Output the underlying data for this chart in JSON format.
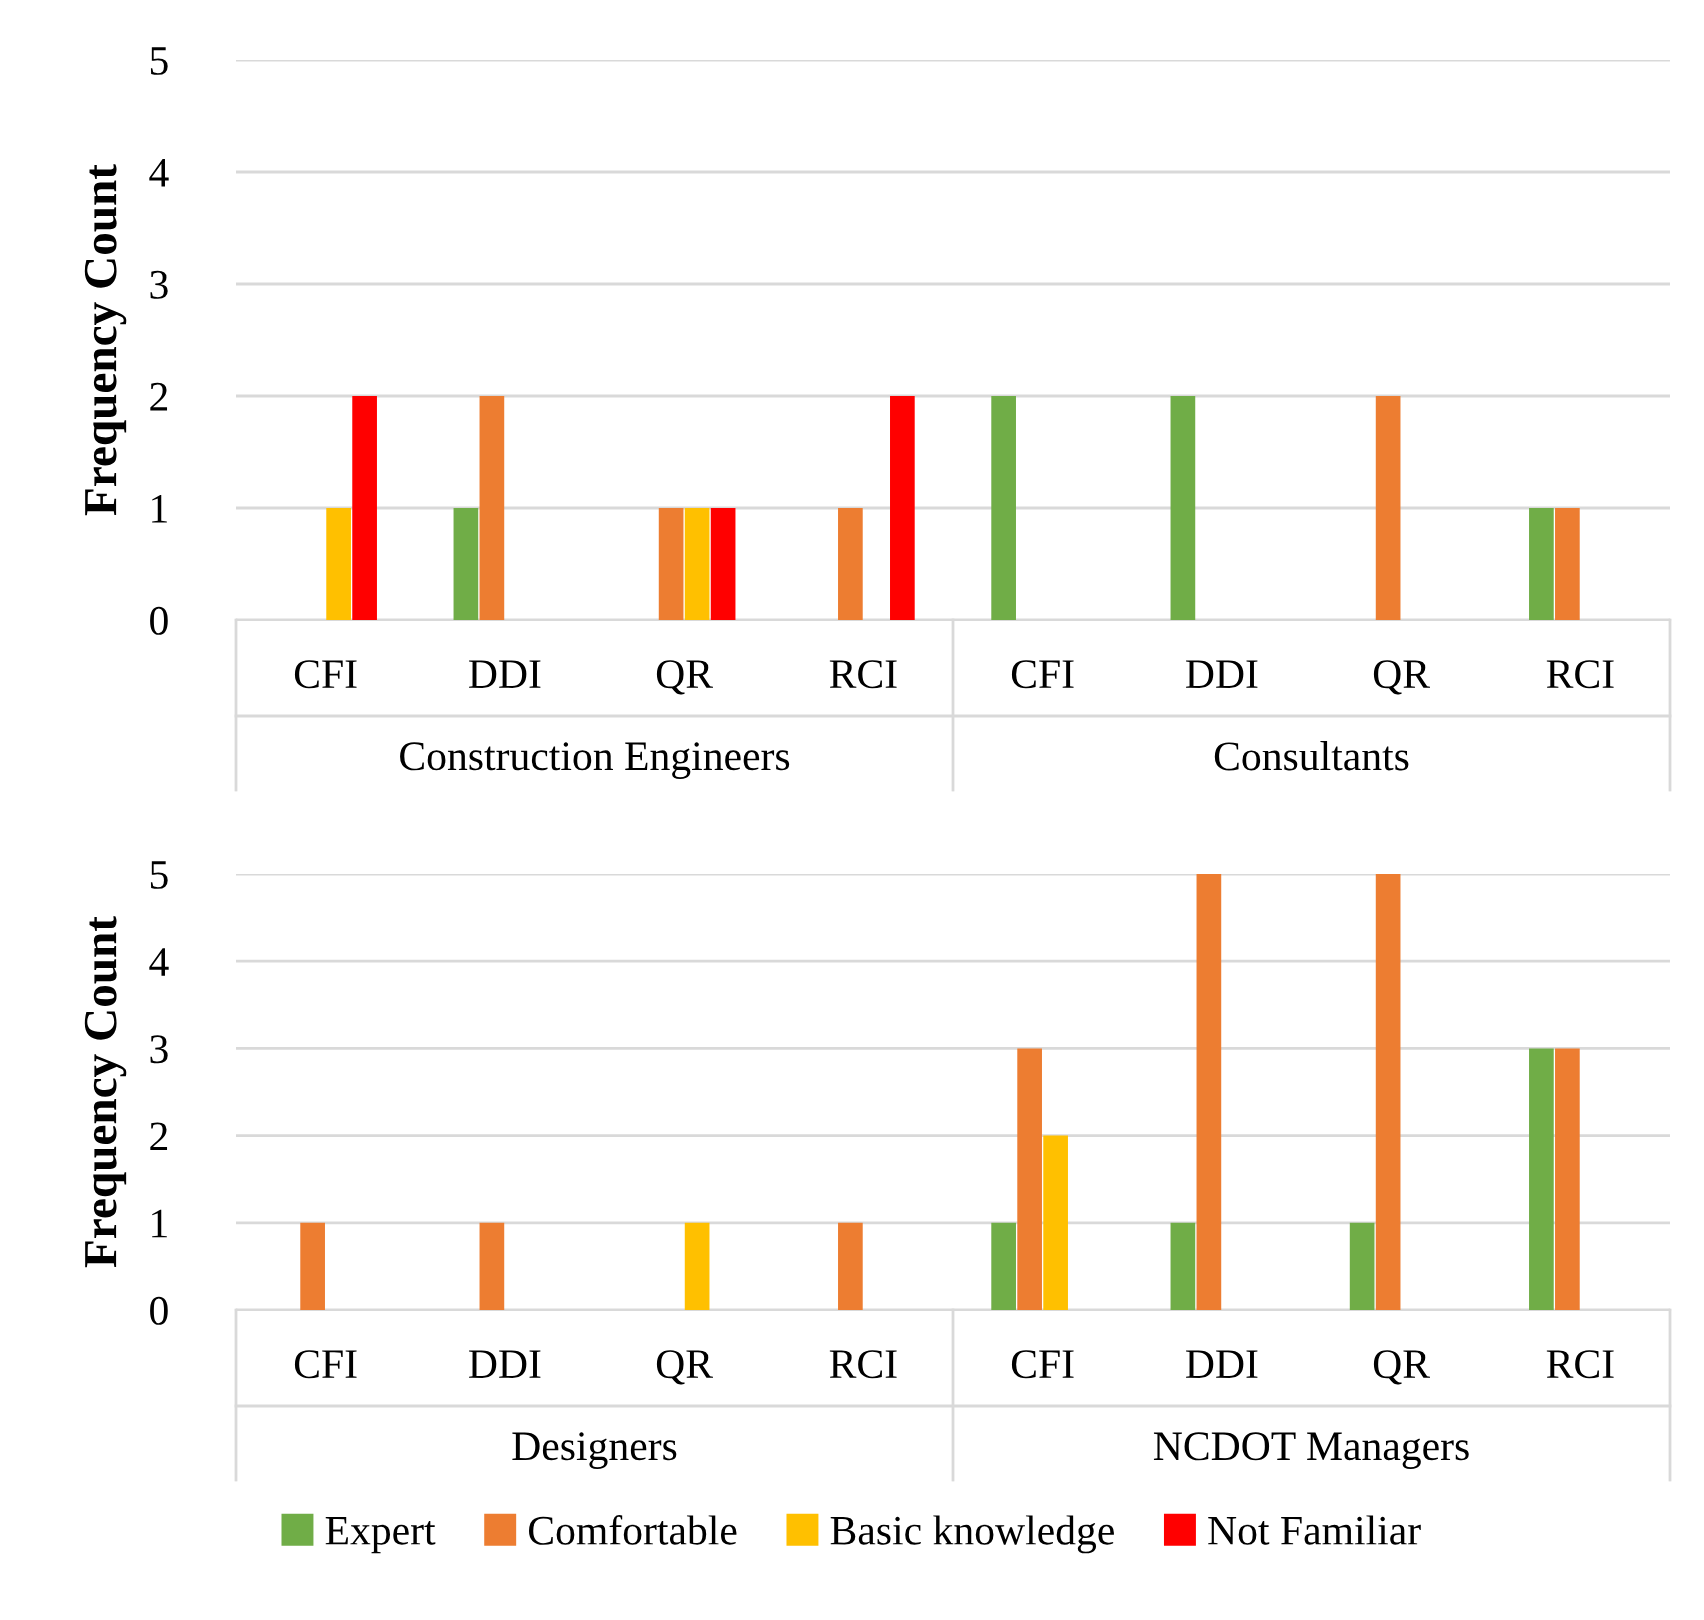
{
  "chart_data": [
    {
      "type": "bar",
      "ylabel": "Frequency Count",
      "categories": [
        "CFI",
        "DDI",
        "QR",
        "RCI",
        "CFI",
        "DDI",
        "QR",
        "RCI"
      ],
      "series": [
        {
          "color": "#70ad47",
          "values": [
            0,
            1,
            0,
            0,
            2,
            2,
            0,
            1
          ]
        },
        {
          "color": "#ed7d31",
          "values": [
            0,
            2,
            1,
            1,
            0,
            0,
            2,
            1
          ]
        },
        {
          "color": "#ffc000",
          "values": [
            1,
            0,
            1,
            0,
            0,
            0,
            0,
            0
          ]
        },
        {
          "color": "#ff0000",
          "values": [
            2,
            0,
            1,
            2,
            0,
            0,
            0,
            0
          ]
        }
      ],
      "ylim": [
        0,
        5
      ],
      "yticks": [
        0,
        1,
        2,
        3,
        4,
        5
      ],
      "grid": "y",
      "annotations": [
        "Construction Engineers",
        "Consultants"
      ]
    },
    {
      "type": "bar",
      "ylabel": "Frequency Count",
      "categories": [
        "CFI",
        "DDI",
        "QR",
        "RCI",
        "CFI",
        "DDI",
        "QR",
        "RCI"
      ],
      "series": [
        {
          "name": "Expert",
          "color": "#70ad47",
          "values": [
            0,
            0,
            0,
            0,
            1,
            1,
            1,
            3
          ]
        },
        {
          "name": "Comfortable",
          "color": "#ed7d31",
          "values": [
            1,
            1,
            0,
            1,
            3,
            5,
            5,
            3
          ]
        },
        {
          "name": "Basic knowledge",
          "color": "#ffc000",
          "values": [
            0,
            0,
            1,
            0,
            2,
            0,
            0,
            0
          ]
        },
        {
          "name": "Not Familiar",
          "color": "#ff0000",
          "values": [
            0,
            0,
            0,
            0,
            0,
            0,
            0,
            0
          ]
        }
      ],
      "ylim": [
        0,
        5
      ],
      "yticks": [
        0,
        1,
        2,
        3,
        4,
        5
      ],
      "grid": "y",
      "legend": "bottom",
      "annotations": [
        "Designers",
        "NCDOT Managers"
      ]
    }
  ]
}
